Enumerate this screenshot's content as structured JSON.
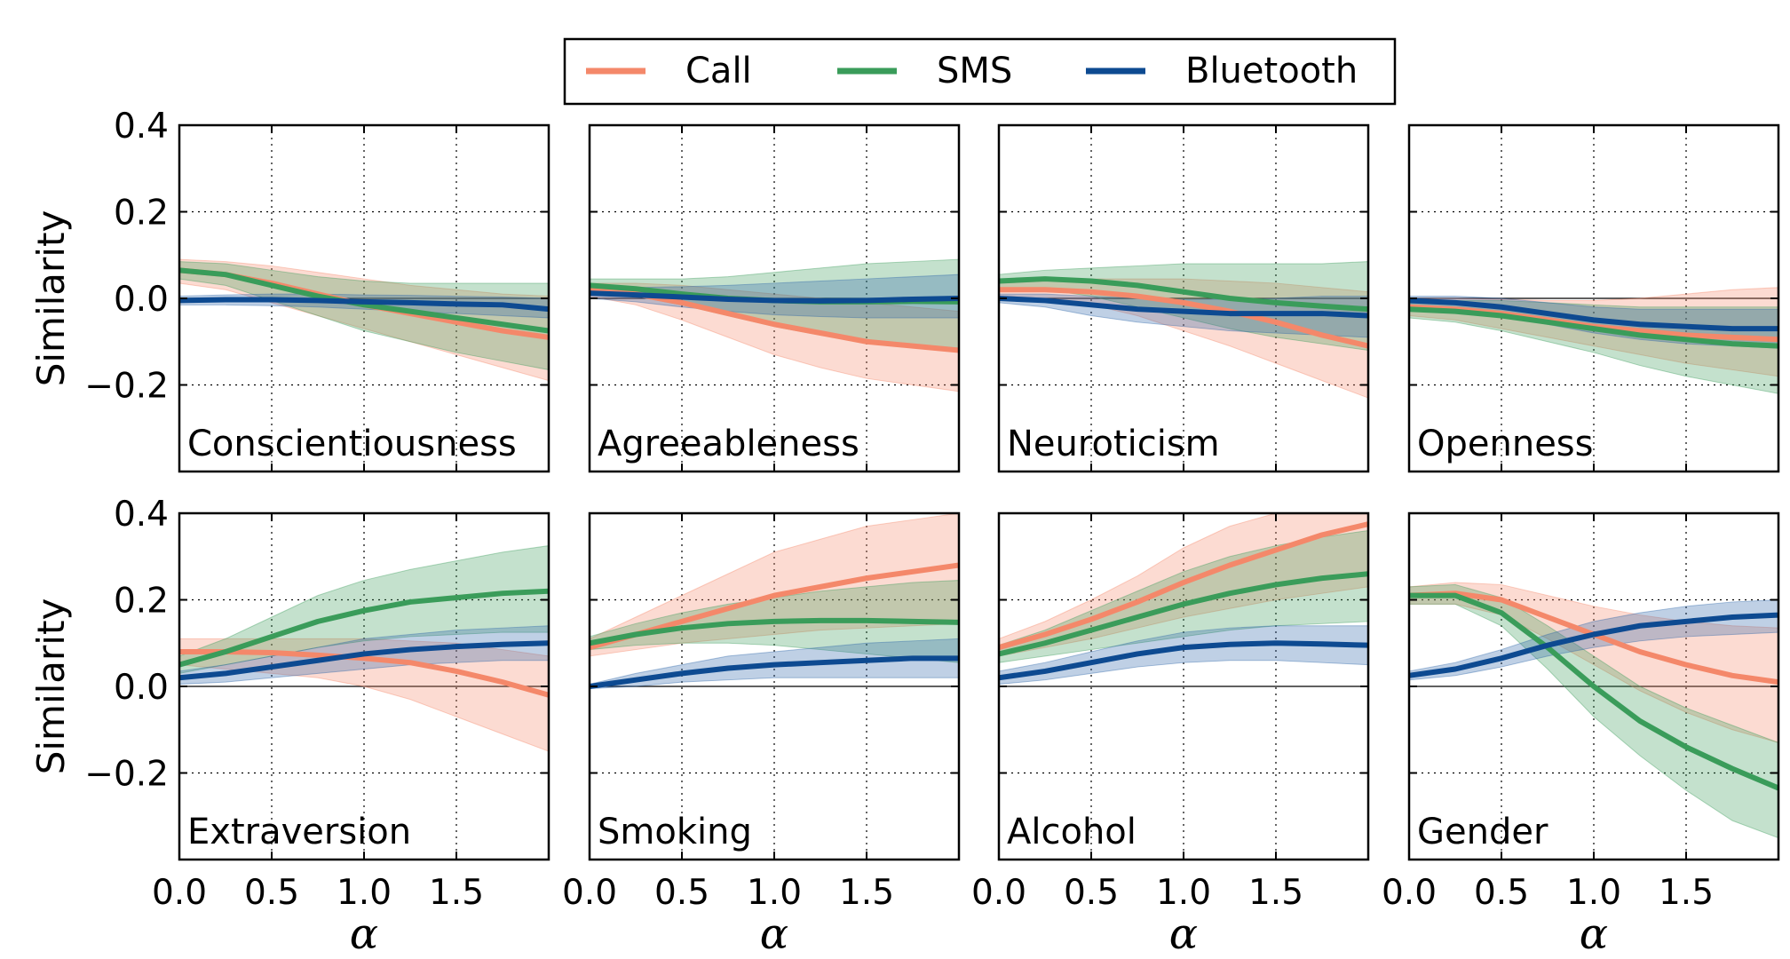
{
  "legend": {
    "placement": "top-center",
    "entries": [
      {
        "label": "Call",
        "color": "#f4886a"
      },
      {
        "label": "SMS",
        "color": "#3a9c5a"
      },
      {
        "label": "Bluetooth",
        "color": "#0d4a91"
      }
    ]
  },
  "colors": {
    "Call": {
      "line": "#f4886a",
      "band": "#f4886a"
    },
    "SMS": {
      "line": "#3a9c5a",
      "band": "#3a9c5a"
    },
    "Bluetooth": {
      "line": "#0d4a91",
      "band": "#2a64a8"
    }
  },
  "shared_axes": {
    "ylabel": "Similarity",
    "xlabel": "α",
    "xlim": [
      0,
      2.0
    ],
    "ylim": [
      -0.4,
      0.4
    ],
    "xticks": [
      "0.0",
      "0.5",
      "1.0",
      "1.5"
    ],
    "yticks": [
      "0.4",
      "0.2",
      "0.0",
      "−0.2"
    ],
    "grid": true
  },
  "chart_data": [
    {
      "type": "line",
      "title": "Conscientiousness",
      "x": [
        0,
        0.25,
        0.5,
        0.75,
        1,
        1.25,
        1.5,
        1.75,
        2.0
      ],
      "series": [
        {
          "name": "Call",
          "values": [
            0.065,
            0.055,
            0.035,
            0.01,
            -0.015,
            -0.035,
            -0.055,
            -0.075,
            -0.09
          ],
          "lower": [
            0.035,
            0.02,
            -0.01,
            -0.04,
            -0.07,
            -0.1,
            -0.13,
            -0.16,
            -0.19
          ],
          "upper": [
            0.09,
            0.085,
            0.075,
            0.06,
            0.045,
            0.03,
            0.02,
            0.01,
            0.005
          ]
        },
        {
          "name": "SMS",
          "values": [
            0.065,
            0.055,
            0.03,
            0.005,
            -0.015,
            -0.03,
            -0.045,
            -0.06,
            -0.075
          ],
          "lower": [
            0.045,
            0.03,
            -0.005,
            -0.04,
            -0.075,
            -0.1,
            -0.125,
            -0.145,
            -0.165
          ],
          "upper": [
            0.085,
            0.08,
            0.065,
            0.05,
            0.04,
            0.035,
            0.035,
            0.035,
            0.035
          ]
        },
        {
          "name": "Bluetooth",
          "values": [
            -0.005,
            -0.003,
            -0.003,
            -0.005,
            -0.008,
            -0.01,
            -0.013,
            -0.015,
            -0.025
          ],
          "lower": [
            -0.015,
            -0.015,
            -0.017,
            -0.02,
            -0.025,
            -0.03,
            -0.035,
            -0.04,
            -0.045
          ],
          "upper": [
            0.005,
            0.008,
            0.01,
            0.01,
            0.008,
            0.007,
            0.005,
            0.003,
            0.0
          ]
        }
      ]
    },
    {
      "type": "line",
      "title": "Agreeableness",
      "x": [
        0,
        0.25,
        0.5,
        0.75,
        1,
        1.25,
        1.5,
        1.75,
        2.0
      ],
      "series": [
        {
          "name": "Call",
          "values": [
            0.02,
            0.01,
            -0.01,
            -0.035,
            -0.06,
            -0.08,
            -0.1,
            -0.11,
            -0.12
          ],
          "lower": [
            0.005,
            -0.015,
            -0.05,
            -0.09,
            -0.13,
            -0.16,
            -0.185,
            -0.2,
            -0.215
          ],
          "upper": [
            0.035,
            0.035,
            0.03,
            0.02,
            0.01,
            0.0,
            -0.01,
            -0.02,
            -0.03
          ]
        },
        {
          "name": "SMS",
          "values": [
            0.03,
            0.022,
            0.01,
            0.0,
            -0.005,
            -0.008,
            -0.008,
            -0.007,
            -0.008
          ],
          "lower": [
            0.015,
            0.005,
            -0.015,
            -0.04,
            -0.065,
            -0.085,
            -0.1,
            -0.11,
            -0.115
          ],
          "upper": [
            0.045,
            0.045,
            0.045,
            0.05,
            0.06,
            0.07,
            0.08,
            0.085,
            0.09
          ]
        },
        {
          "name": "Bluetooth",
          "values": [
            0.012,
            0.008,
            0.003,
            -0.002,
            -0.005,
            -0.006,
            -0.005,
            -0.002,
            0.0
          ],
          "lower": [
            0.0,
            -0.008,
            -0.02,
            -0.03,
            -0.038,
            -0.042,
            -0.045,
            -0.045,
            -0.045
          ],
          "upper": [
            0.022,
            0.025,
            0.027,
            0.03,
            0.035,
            0.04,
            0.045,
            0.05,
            0.055
          ]
        }
      ]
    },
    {
      "type": "line",
      "title": "Neuroticism",
      "x": [
        0,
        0.25,
        0.5,
        0.75,
        1,
        1.25,
        1.5,
        1.75,
        2.0
      ],
      "series": [
        {
          "name": "Call",
          "values": [
            0.02,
            0.02,
            0.015,
            0.005,
            -0.01,
            -0.03,
            -0.055,
            -0.085,
            -0.11
          ],
          "lower": [
            0.005,
            0.0,
            -0.015,
            -0.04,
            -0.075,
            -0.11,
            -0.15,
            -0.19,
            -0.23
          ],
          "upper": [
            0.035,
            0.04,
            0.045,
            0.045,
            0.045,
            0.04,
            0.035,
            0.025,
            0.015
          ]
        },
        {
          "name": "SMS",
          "values": [
            0.04,
            0.045,
            0.04,
            0.03,
            0.015,
            0.0,
            -0.01,
            -0.018,
            -0.025
          ],
          "lower": [
            0.025,
            0.02,
            0.005,
            -0.02,
            -0.045,
            -0.07,
            -0.09,
            -0.105,
            -0.12
          ],
          "upper": [
            0.055,
            0.065,
            0.07,
            0.075,
            0.08,
            0.08,
            0.08,
            0.08,
            0.085
          ]
        },
        {
          "name": "Bluetooth",
          "values": [
            0.0,
            -0.005,
            -0.015,
            -0.025,
            -0.03,
            -0.035,
            -0.035,
            -0.035,
            -0.04
          ],
          "lower": [
            -0.01,
            -0.02,
            -0.04,
            -0.055,
            -0.065,
            -0.075,
            -0.08,
            -0.085,
            -0.09
          ],
          "upper": [
            0.01,
            0.01,
            0.005,
            0.0,
            -0.002,
            -0.002,
            0.0,
            0.005,
            0.005
          ]
        }
      ]
    },
    {
      "type": "line",
      "title": "Openness",
      "x": [
        0,
        0.25,
        0.5,
        0.75,
        1,
        1.25,
        1.5,
        1.75,
        2.0
      ],
      "series": [
        {
          "name": "Call",
          "values": [
            -0.02,
            -0.025,
            -0.035,
            -0.05,
            -0.065,
            -0.075,
            -0.085,
            -0.09,
            -0.095
          ],
          "lower": [
            -0.04,
            -0.05,
            -0.07,
            -0.09,
            -0.11,
            -0.13,
            -0.15,
            -0.165,
            -0.18
          ],
          "upper": [
            0.0,
            0.0,
            -0.002,
            -0.005,
            -0.005,
            0.0,
            0.01,
            0.02,
            0.025
          ]
        },
        {
          "name": "SMS",
          "values": [
            -0.025,
            -0.03,
            -0.04,
            -0.055,
            -0.07,
            -0.085,
            -0.095,
            -0.105,
            -0.11
          ],
          "lower": [
            -0.045,
            -0.055,
            -0.075,
            -0.1,
            -0.125,
            -0.155,
            -0.18,
            -0.2,
            -0.22
          ],
          "upper": [
            -0.005,
            -0.005,
            -0.005,
            -0.01,
            -0.015,
            -0.02,
            -0.02,
            -0.02,
            -0.02
          ]
        },
        {
          "name": "Bluetooth",
          "values": [
            -0.005,
            -0.01,
            -0.02,
            -0.035,
            -0.05,
            -0.06,
            -0.065,
            -0.07,
            -0.07
          ],
          "lower": [
            -0.015,
            -0.025,
            -0.04,
            -0.06,
            -0.08,
            -0.095,
            -0.105,
            -0.11,
            -0.115
          ],
          "upper": [
            0.005,
            0.005,
            0.0,
            -0.01,
            -0.02,
            -0.025,
            -0.025,
            -0.025,
            -0.025
          ]
        }
      ]
    },
    {
      "type": "line",
      "title": "Extraversion",
      "x": [
        0,
        0.25,
        0.5,
        0.75,
        1,
        1.25,
        1.5,
        1.75,
        2.0
      ],
      "series": [
        {
          "name": "Call",
          "values": [
            0.08,
            0.08,
            0.078,
            0.072,
            0.065,
            0.055,
            0.035,
            0.01,
            -0.02
          ],
          "lower": [
            0.05,
            0.04,
            0.03,
            0.02,
            0.0,
            -0.03,
            -0.07,
            -0.11,
            -0.15
          ],
          "upper": [
            0.11,
            0.11,
            0.11,
            0.11,
            0.11,
            0.105,
            0.1,
            0.085,
            0.07
          ]
        },
        {
          "name": "SMS",
          "values": [
            0.05,
            0.08,
            0.115,
            0.15,
            0.175,
            0.195,
            0.205,
            0.215,
            0.22
          ],
          "lower": [
            0.03,
            0.05,
            0.07,
            0.09,
            0.105,
            0.115,
            0.12,
            0.125,
            0.125
          ],
          "upper": [
            0.07,
            0.11,
            0.16,
            0.21,
            0.245,
            0.27,
            0.29,
            0.31,
            0.325
          ]
        },
        {
          "name": "Bluetooth",
          "values": [
            0.02,
            0.03,
            0.045,
            0.06,
            0.075,
            0.085,
            0.092,
            0.097,
            0.1
          ],
          "lower": [
            0.005,
            0.01,
            0.02,
            0.03,
            0.04,
            0.05,
            0.055,
            0.06,
            0.06
          ],
          "upper": [
            0.035,
            0.05,
            0.07,
            0.09,
            0.11,
            0.12,
            0.13,
            0.135,
            0.14
          ]
        }
      ]
    },
    {
      "type": "line",
      "title": "Smoking",
      "x": [
        0,
        0.25,
        0.5,
        0.75,
        1,
        1.25,
        1.5,
        1.75,
        2.0
      ],
      "series": [
        {
          "name": "Call",
          "values": [
            0.09,
            0.12,
            0.15,
            0.18,
            0.21,
            0.23,
            0.25,
            0.265,
            0.28
          ],
          "lower": [
            0.07,
            0.085,
            0.1,
            0.11,
            0.12,
            0.13,
            0.135,
            0.14,
            0.145
          ],
          "upper": [
            0.11,
            0.16,
            0.21,
            0.26,
            0.31,
            0.34,
            0.37,
            0.385,
            0.4
          ]
        },
        {
          "name": "SMS",
          "values": [
            0.1,
            0.12,
            0.135,
            0.145,
            0.15,
            0.152,
            0.152,
            0.15,
            0.148
          ],
          "lower": [
            0.085,
            0.095,
            0.1,
            0.1,
            0.095,
            0.085,
            0.075,
            0.065,
            0.055
          ],
          "upper": [
            0.115,
            0.145,
            0.17,
            0.19,
            0.205,
            0.22,
            0.23,
            0.24,
            0.245
          ]
        },
        {
          "name": "Bluetooth",
          "values": [
            0.0,
            0.015,
            0.03,
            0.042,
            0.05,
            0.055,
            0.06,
            0.065,
            0.065
          ],
          "lower": [
            -0.005,
            0.0,
            0.01,
            0.015,
            0.02,
            0.02,
            0.02,
            0.02,
            0.02
          ],
          "upper": [
            0.005,
            0.03,
            0.05,
            0.07,
            0.08,
            0.09,
            0.1,
            0.105,
            0.11
          ]
        }
      ]
    },
    {
      "type": "line",
      "title": "Alcohol",
      "x": [
        0,
        0.25,
        0.5,
        0.75,
        1,
        1.25,
        1.5,
        1.75,
        2.0
      ],
      "series": [
        {
          "name": "Call",
          "values": [
            0.09,
            0.12,
            0.155,
            0.195,
            0.24,
            0.28,
            0.315,
            0.35,
            0.375
          ],
          "lower": [
            0.07,
            0.09,
            0.11,
            0.135,
            0.16,
            0.18,
            0.2,
            0.215,
            0.23
          ],
          "upper": [
            0.11,
            0.15,
            0.2,
            0.255,
            0.32,
            0.37,
            0.4,
            0.4,
            0.4
          ]
        },
        {
          "name": "SMS",
          "values": [
            0.075,
            0.1,
            0.13,
            0.16,
            0.19,
            0.215,
            0.235,
            0.25,
            0.26
          ],
          "lower": [
            0.055,
            0.07,
            0.085,
            0.1,
            0.115,
            0.13,
            0.14,
            0.145,
            0.15
          ],
          "upper": [
            0.095,
            0.13,
            0.175,
            0.22,
            0.265,
            0.3,
            0.325,
            0.345,
            0.36
          ]
        },
        {
          "name": "Bluetooth",
          "values": [
            0.02,
            0.035,
            0.055,
            0.075,
            0.09,
            0.097,
            0.1,
            0.098,
            0.095
          ],
          "lower": [
            0.005,
            0.015,
            0.03,
            0.045,
            0.055,
            0.06,
            0.06,
            0.055,
            0.05
          ],
          "upper": [
            0.035,
            0.055,
            0.08,
            0.105,
            0.125,
            0.135,
            0.14,
            0.14,
            0.14
          ]
        }
      ]
    },
    {
      "type": "line",
      "title": "Gender",
      "x": [
        0,
        0.25,
        0.5,
        0.75,
        1,
        1.25,
        1.5,
        1.75,
        2.0
      ],
      "series": [
        {
          "name": "Call",
          "values": [
            0.21,
            0.215,
            0.2,
            0.16,
            0.12,
            0.08,
            0.05,
            0.025,
            0.01
          ],
          "lower": [
            0.19,
            0.19,
            0.165,
            0.11,
            0.05,
            -0.01,
            -0.06,
            -0.1,
            -0.13
          ],
          "upper": [
            0.23,
            0.24,
            0.235,
            0.21,
            0.185,
            0.165,
            0.15,
            0.14,
            0.135
          ]
        },
        {
          "name": "SMS",
          "values": [
            0.21,
            0.21,
            0.17,
            0.09,
            0.0,
            -0.08,
            -0.14,
            -0.19,
            -0.235
          ],
          "lower": [
            0.19,
            0.19,
            0.14,
            0.04,
            -0.07,
            -0.16,
            -0.24,
            -0.31,
            -0.35
          ],
          "upper": [
            0.23,
            0.235,
            0.205,
            0.14,
            0.07,
            0.0,
            -0.05,
            -0.09,
            -0.13
          ]
        },
        {
          "name": "Bluetooth",
          "values": [
            0.025,
            0.04,
            0.065,
            0.095,
            0.12,
            0.14,
            0.15,
            0.16,
            0.165
          ],
          "lower": [
            0.015,
            0.025,
            0.045,
            0.07,
            0.09,
            0.105,
            0.115,
            0.12,
            0.125
          ],
          "upper": [
            0.035,
            0.055,
            0.085,
            0.12,
            0.15,
            0.17,
            0.185,
            0.195,
            0.2
          ]
        }
      ]
    }
  ]
}
